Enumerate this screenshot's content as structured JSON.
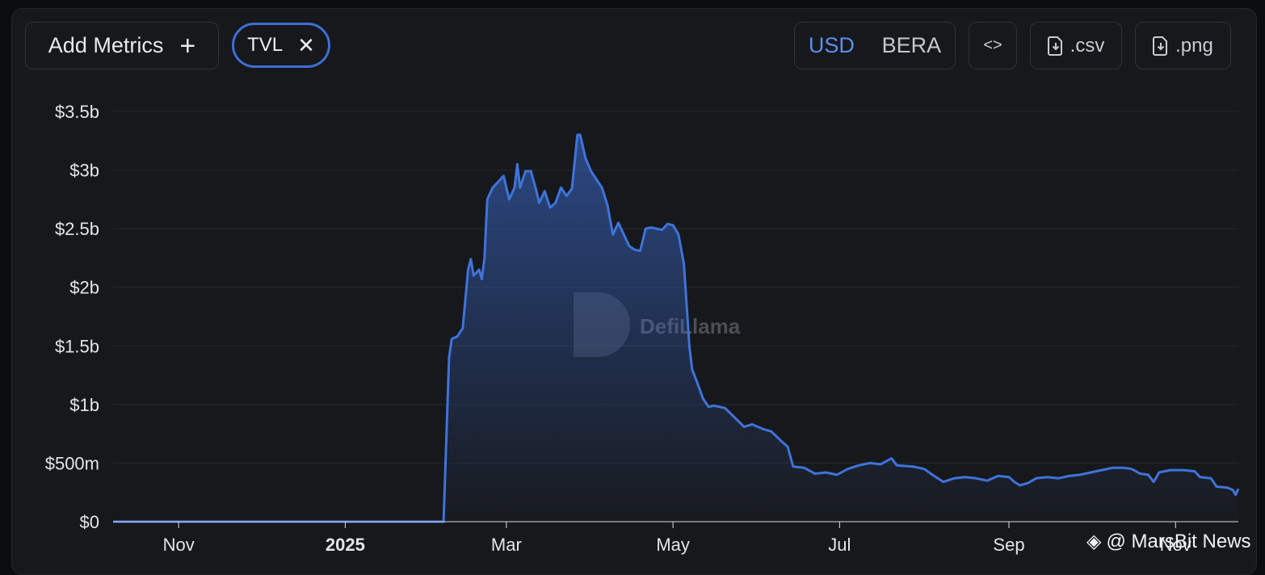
{
  "toolbar": {
    "add_metrics_label": "Add Metrics",
    "add_icon": "plus-icon",
    "metric_chip_label": "TVL",
    "close_icon": "close-icon",
    "currency_options": [
      "USD",
      "BERA"
    ],
    "currency_selected": "USD",
    "embed_icon": "code-icon",
    "embed_label": "<>",
    "csv_label": ".csv",
    "png_label": ".png",
    "download_icon": "file-download-icon"
  },
  "watermark": "DefiLlama",
  "credit": "@ MarsBit News",
  "colors": {
    "accent": "#3b6fd8",
    "line": "#3f73db",
    "background": "#17181b"
  },
  "chart_data": {
    "type": "area",
    "title": "",
    "xlabel": "",
    "ylabel": "",
    "x_tick_labels": [
      "Nov",
      "2025",
      "Mar",
      "May",
      "Jul",
      "Sep",
      "Nov"
    ],
    "x_tick_dates": [
      "2024-11-01",
      "2025-01-01",
      "2025-03-01",
      "2025-05-01",
      "2025-07-01",
      "2025-09-01",
      "2025-11-01"
    ],
    "y_tick_labels": [
      "$0",
      "$500m",
      "$1b",
      "$1.5b",
      "$2b",
      "$2.5b",
      "$3b",
      "$3.5b"
    ],
    "y_tick_values": [
      0,
      500,
      1000,
      1500,
      2000,
      2500,
      3000,
      3500
    ],
    "y_unit": "USD millions",
    "xlim": [
      "2024-10-08",
      "2025-11-24"
    ],
    "ylim": [
      0,
      3500
    ],
    "grid": true,
    "series": [
      {
        "values": [
          [
            "2024-10-08",
            0
          ],
          [
            "2025-02-06",
            0
          ],
          [
            "2025-02-08",
            1400
          ],
          [
            "2025-02-09",
            1560
          ],
          [
            "2025-02-11",
            1580
          ],
          [
            "2025-02-13",
            1650
          ],
          [
            "2025-02-15",
            2150
          ],
          [
            "2025-02-16",
            2240
          ],
          [
            "2025-02-17",
            2100
          ],
          [
            "2025-02-19",
            2150
          ],
          [
            "2025-02-20",
            2070
          ],
          [
            "2025-02-21",
            2250
          ],
          [
            "2025-02-22",
            2750
          ],
          [
            "2025-02-24",
            2850
          ],
          [
            "2025-02-26",
            2900
          ],
          [
            "2025-02-28",
            2950
          ],
          [
            "2025-03-02",
            2750
          ],
          [
            "2025-03-04",
            2850
          ],
          [
            "2025-03-05",
            3050
          ],
          [
            "2025-03-06",
            2850
          ],
          [
            "2025-03-08",
            2990
          ],
          [
            "2025-03-10",
            2990
          ],
          [
            "2025-03-12",
            2820
          ],
          [
            "2025-03-13",
            2720
          ],
          [
            "2025-03-15",
            2820
          ],
          [
            "2025-03-17",
            2680
          ],
          [
            "2025-03-19",
            2720
          ],
          [
            "2025-03-21",
            2850
          ],
          [
            "2025-03-23",
            2780
          ],
          [
            "2025-03-25",
            2840
          ],
          [
            "2025-03-27",
            3300
          ],
          [
            "2025-03-28",
            3300
          ],
          [
            "2025-03-30",
            3100
          ],
          [
            "2025-04-01",
            2990
          ],
          [
            "2025-04-03",
            2920
          ],
          [
            "2025-04-05",
            2850
          ],
          [
            "2025-04-07",
            2700
          ],
          [
            "2025-04-09",
            2450
          ],
          [
            "2025-04-11",
            2550
          ],
          [
            "2025-04-13",
            2450
          ],
          [
            "2025-04-15",
            2350
          ],
          [
            "2025-04-17",
            2320
          ],
          [
            "2025-04-19",
            2310
          ],
          [
            "2025-04-21",
            2500
          ],
          [
            "2025-04-23",
            2510
          ],
          [
            "2025-04-25",
            2500
          ],
          [
            "2025-04-27",
            2490
          ],
          [
            "2025-04-29",
            2540
          ],
          [
            "2025-05-01",
            2530
          ],
          [
            "2025-05-03",
            2450
          ],
          [
            "2025-05-05",
            2200
          ],
          [
            "2025-05-07",
            1500
          ],
          [
            "2025-05-08",
            1300
          ],
          [
            "2025-05-10",
            1180
          ],
          [
            "2025-05-12",
            1050
          ],
          [
            "2025-05-14",
            980
          ],
          [
            "2025-05-16",
            990
          ],
          [
            "2025-05-20",
            970
          ],
          [
            "2025-05-24",
            880
          ],
          [
            "2025-05-27",
            810
          ],
          [
            "2025-05-30",
            830
          ],
          [
            "2025-06-03",
            790
          ],
          [
            "2025-06-06",
            770
          ],
          [
            "2025-06-10",
            680
          ],
          [
            "2025-06-12",
            640
          ],
          [
            "2025-06-14",
            470
          ],
          [
            "2025-06-18",
            460
          ],
          [
            "2025-06-22",
            410
          ],
          [
            "2025-06-26",
            420
          ],
          [
            "2025-06-30",
            400
          ],
          [
            "2025-07-04",
            450
          ],
          [
            "2025-07-08",
            480
          ],
          [
            "2025-07-12",
            500
          ],
          [
            "2025-07-16",
            490
          ],
          [
            "2025-07-20",
            540
          ],
          [
            "2025-07-22",
            480
          ],
          [
            "2025-07-28",
            470
          ],
          [
            "2025-08-01",
            450
          ],
          [
            "2025-08-04",
            400
          ],
          [
            "2025-08-08",
            340
          ],
          [
            "2025-08-12",
            370
          ],
          [
            "2025-08-16",
            380
          ],
          [
            "2025-08-20",
            370
          ],
          [
            "2025-08-24",
            350
          ],
          [
            "2025-08-28",
            390
          ],
          [
            "2025-09-01",
            380
          ],
          [
            "2025-09-03",
            340
          ],
          [
            "2025-09-05",
            310
          ],
          [
            "2025-09-08",
            330
          ],
          [
            "2025-09-11",
            370
          ],
          [
            "2025-09-15",
            380
          ],
          [
            "2025-09-19",
            370
          ],
          [
            "2025-09-23",
            390
          ],
          [
            "2025-09-27",
            400
          ],
          [
            "2025-10-01",
            420
          ],
          [
            "2025-10-05",
            440
          ],
          [
            "2025-10-09",
            460
          ],
          [
            "2025-10-13",
            460
          ],
          [
            "2025-10-16",
            450
          ],
          [
            "2025-10-19",
            410
          ],
          [
            "2025-10-22",
            400
          ],
          [
            "2025-10-24",
            340
          ],
          [
            "2025-10-26",
            420
          ],
          [
            "2025-10-30",
            440
          ],
          [
            "2025-11-04",
            440
          ],
          [
            "2025-11-08",
            430
          ],
          [
            "2025-11-10",
            380
          ],
          [
            "2025-11-14",
            370
          ],
          [
            "2025-11-16",
            300
          ],
          [
            "2025-11-20",
            290
          ],
          [
            "2025-11-22",
            270
          ],
          [
            "2025-11-23",
            230
          ],
          [
            "2025-11-24",
            280
          ]
        ]
      }
    ]
  }
}
